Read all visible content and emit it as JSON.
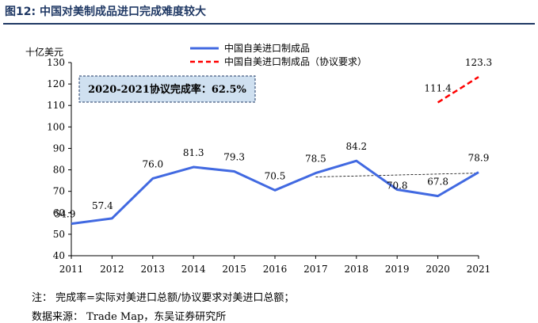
{
  "figure_title": "图12:  中国对美制成品进口完成难度较大",
  "chart_data": {
    "type": "line",
    "title": "",
    "xlabel": "",
    "ylabel": "十亿美元",
    "x": [
      "2011",
      "2012",
      "2013",
      "2014",
      "2015",
      "2016",
      "2017",
      "2018",
      "2019",
      "2020",
      "2021"
    ],
    "ylim": [
      40,
      130
    ],
    "yticks": [
      40,
      50,
      60,
      70,
      80,
      90,
      100,
      110,
      120,
      130
    ],
    "series": [
      {
        "name": "中国自美进口制成品",
        "style": "solid",
        "color": "#4169e1",
        "x": [
          "2011",
          "2012",
          "2013",
          "2014",
          "2015",
          "2016",
          "2017",
          "2018",
          "2019",
          "2020",
          "2021"
        ],
        "values": [
          54.9,
          57.4,
          76.0,
          81.3,
          79.3,
          70.5,
          78.5,
          84.2,
          70.8,
          67.8,
          78.9
        ],
        "labels": [
          "54.9",
          "57.4",
          "76.0",
          "81.3",
          "79.3",
          "70.5",
          "78.5",
          "84.2",
          "70.8",
          "67.8",
          "78.9"
        ]
      },
      {
        "name": "中国自美进口制成品（协议要求）",
        "style": "dashed",
        "color": "#ff0000",
        "x": [
          "2020",
          "2021"
        ],
        "values": [
          111.4,
          123.3
        ],
        "labels": [
          "111.4",
          "123.3"
        ]
      }
    ],
    "trend_line": {
      "style": "dashed-thin",
      "color": "#000000",
      "from": [
        "2017",
        76.7
      ],
      "to": [
        "2021",
        78.5
      ]
    },
    "annotation": "2020-2021协议完成率：62.5%",
    "legend_position": "top-right"
  },
  "notes": {
    "note1": "注：  完成率=实际对美进口总额/协议要求对美进口总额；",
    "note2": "数据来源：  Trade Map，东吴证券研究所"
  },
  "colors": {
    "title": "#1f3864",
    "annotation_fill": "#cfe0f0",
    "annotation_border": "#1f3864"
  }
}
